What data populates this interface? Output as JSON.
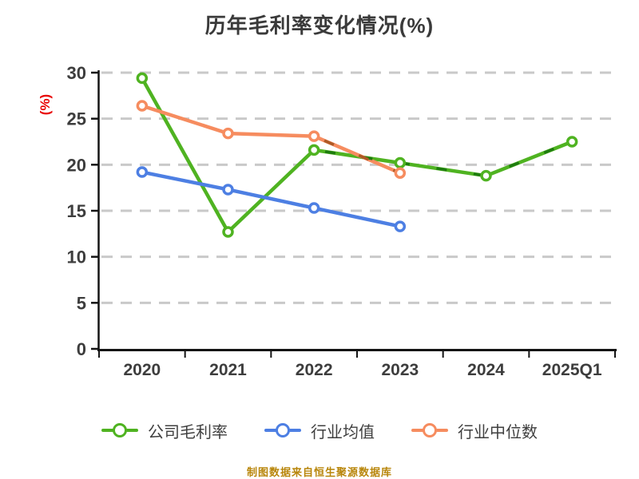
{
  "title": "历年毛利率变化情况(%)",
  "footer": "制图数据来自恒生聚源数据库",
  "colors": {
    "background": "#ffffff",
    "title_text": "#3a3a3a",
    "axis_line": "#141414",
    "tick_label": "#3d3d3d",
    "gridline": "#c9c9c9",
    "y_axis_label_red": "#e80000",
    "legend_text": "#3f3f3f",
    "footer_gold": "#b8860b",
    "series_green": "#4fb321",
    "series_green_dark_dash": "#1e7c0f",
    "series_blue": "#4d7fe3",
    "series_orange": "#f68c5f",
    "series_orange_dark_dash": "#ad5a26"
  },
  "chart_data": {
    "type": "line",
    "title": "历年毛利率变化情况(%)",
    "xlabel": "",
    "ylabel": "(%)",
    "ylim": [
      0,
      30
    ],
    "yticks": [
      0,
      5,
      10,
      15,
      20,
      25,
      30
    ],
    "grid": "horizontal dashed, hidden at 0",
    "legend_position": "bottom",
    "categories": [
      "2020",
      "2021",
      "2022",
      "2023",
      "2024",
      "2025Q1"
    ],
    "series": [
      {
        "name": "公司毛利率",
        "color": "#4fb321",
        "marker": "hollow-circle",
        "values": [
          29.4,
          12.7,
          21.6,
          20.2,
          18.8,
          22.5
        ],
        "dark_dashed_overlay": {
          "from_index": 2,
          "to_index": 5,
          "color": "#1e7c0f"
        }
      },
      {
        "name": "行业均值",
        "color": "#4d7fe3",
        "marker": "hollow-circle",
        "values": [
          19.2,
          17.3,
          15.3,
          13.3,
          null,
          null
        ],
        "dark_dashed_overlay": null
      },
      {
        "name": "行业中位数",
        "color": "#f68c5f",
        "marker": "hollow-circle",
        "values": [
          26.4,
          23.4,
          23.1,
          19.1,
          null,
          null
        ],
        "dark_dashed_overlay": {
          "from_index": 2,
          "to_index": 3,
          "color": "#ad5a26"
        }
      }
    ]
  }
}
